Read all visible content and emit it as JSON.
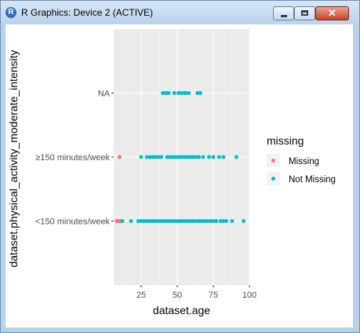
{
  "window": {
    "title": "R Graphics: Device 2 (ACTIVE)",
    "app_icon": "R",
    "buttons": {
      "minimize": "minimize-icon",
      "maximize": "maximize-icon",
      "close": "close-icon"
    },
    "close_glyph": "✕"
  },
  "chart_data": {
    "type": "scatter",
    "xlabel": "dataset.age",
    "ylabel": "dataset.physical_activity_moderate_intensity",
    "x_ticks": [
      25,
      50,
      75,
      100
    ],
    "xlim": [
      6,
      100
    ],
    "categories": [
      "<150 minutes/week",
      "≥150 minutes/week",
      "NA"
    ],
    "grid": true,
    "panel_background": "#ebebeb",
    "legend": {
      "title": "missing",
      "placement": "right",
      "entries": [
        {
          "label": "Missing",
          "color": "#f8766d"
        },
        {
          "label": "Not Missing",
          "color": "#00bfc4"
        }
      ]
    },
    "series": [
      {
        "name": "Missing",
        "color": "#f8766d",
        "points": [
          {
            "x": 10,
            "y": "≥150 minutes/week"
          },
          {
            "x": 8,
            "y": "<150 minutes/week"
          },
          {
            "x": 9,
            "y": "<150 minutes/week"
          },
          {
            "x": 10,
            "y": "<150 minutes/week"
          },
          {
            "x": 11,
            "y": "<150 minutes/week"
          }
        ]
      },
      {
        "name": "Not Missing",
        "color": "#00bfc4",
        "points": [
          {
            "x": 40,
            "y": "NA"
          },
          {
            "x": 42,
            "y": "NA"
          },
          {
            "x": 43,
            "y": "NA"
          },
          {
            "x": 44,
            "y": "NA"
          },
          {
            "x": 48,
            "y": "NA"
          },
          {
            "x": 51,
            "y": "NA"
          },
          {
            "x": 53,
            "y": "NA"
          },
          {
            "x": 55,
            "y": "NA"
          },
          {
            "x": 56,
            "y": "NA"
          },
          {
            "x": 58,
            "y": "NA"
          },
          {
            "x": 64,
            "y": "NA"
          },
          {
            "x": 66,
            "y": "NA"
          },
          {
            "x": 25,
            "y": "≥150 minutes/week"
          },
          {
            "x": 29,
            "y": "≥150 minutes/week"
          },
          {
            "x": 31,
            "y": "≥150 minutes/week"
          },
          {
            "x": 33,
            "y": "≥150 minutes/week"
          },
          {
            "x": 35,
            "y": "≥150 minutes/week"
          },
          {
            "x": 37,
            "y": "≥150 minutes/week"
          },
          {
            "x": 39,
            "y": "≥150 minutes/week"
          },
          {
            "x": 43,
            "y": "≥150 minutes/week"
          },
          {
            "x": 45,
            "y": "≥150 minutes/week"
          },
          {
            "x": 47,
            "y": "≥150 minutes/week"
          },
          {
            "x": 49,
            "y": "≥150 minutes/week"
          },
          {
            "x": 51,
            "y": "≥150 minutes/week"
          },
          {
            "x": 53,
            "y": "≥150 minutes/week"
          },
          {
            "x": 55,
            "y": "≥150 minutes/week"
          },
          {
            "x": 57,
            "y": "≥150 minutes/week"
          },
          {
            "x": 59,
            "y": "≥150 minutes/week"
          },
          {
            "x": 61,
            "y": "≥150 minutes/week"
          },
          {
            "x": 63,
            "y": "≥150 minutes/week"
          },
          {
            "x": 65,
            "y": "≥150 minutes/week"
          },
          {
            "x": 68,
            "y": "≥150 minutes/week"
          },
          {
            "x": 72,
            "y": "≥150 minutes/week"
          },
          {
            "x": 75,
            "y": "≥150 minutes/week"
          },
          {
            "x": 79,
            "y": "≥150 minutes/week"
          },
          {
            "x": 82,
            "y": "≥150 minutes/week"
          },
          {
            "x": 91,
            "y": "≥150 minutes/week"
          },
          {
            "x": 12,
            "y": "<150 minutes/week"
          },
          {
            "x": 18,
            "y": "<150 minutes/week"
          },
          {
            "x": 23,
            "y": "<150 minutes/week"
          },
          {
            "x": 25,
            "y": "<150 minutes/week"
          },
          {
            "x": 27,
            "y": "<150 minutes/week"
          },
          {
            "x": 29,
            "y": "<150 minutes/week"
          },
          {
            "x": 31,
            "y": "<150 minutes/week"
          },
          {
            "x": 33,
            "y": "<150 minutes/week"
          },
          {
            "x": 35,
            "y": "<150 minutes/week"
          },
          {
            "x": 37,
            "y": "<150 minutes/week"
          },
          {
            "x": 39,
            "y": "<150 minutes/week"
          },
          {
            "x": 41,
            "y": "<150 minutes/week"
          },
          {
            "x": 43,
            "y": "<150 minutes/week"
          },
          {
            "x": 45,
            "y": "<150 minutes/week"
          },
          {
            "x": 47,
            "y": "<150 minutes/week"
          },
          {
            "x": 49,
            "y": "<150 minutes/week"
          },
          {
            "x": 51,
            "y": "<150 minutes/week"
          },
          {
            "x": 53,
            "y": "<150 minutes/week"
          },
          {
            "x": 55,
            "y": "<150 minutes/week"
          },
          {
            "x": 57,
            "y": "<150 minutes/week"
          },
          {
            "x": 59,
            "y": "<150 minutes/week"
          },
          {
            "x": 61,
            "y": "<150 minutes/week"
          },
          {
            "x": 63,
            "y": "<150 minutes/week"
          },
          {
            "x": 65,
            "y": "<150 minutes/week"
          },
          {
            "x": 67,
            "y": "<150 minutes/week"
          },
          {
            "x": 69,
            "y": "<150 minutes/week"
          },
          {
            "x": 71,
            "y": "<150 minutes/week"
          },
          {
            "x": 73,
            "y": "<150 minutes/week"
          },
          {
            "x": 75,
            "y": "<150 minutes/week"
          },
          {
            "x": 77,
            "y": "<150 minutes/week"
          },
          {
            "x": 80,
            "y": "<150 minutes/week"
          },
          {
            "x": 82,
            "y": "<150 minutes/week"
          },
          {
            "x": 84,
            "y": "<150 minutes/week"
          },
          {
            "x": 88,
            "y": "<150 minutes/week"
          },
          {
            "x": 96,
            "y": "<150 minutes/week"
          }
        ]
      }
    ]
  }
}
